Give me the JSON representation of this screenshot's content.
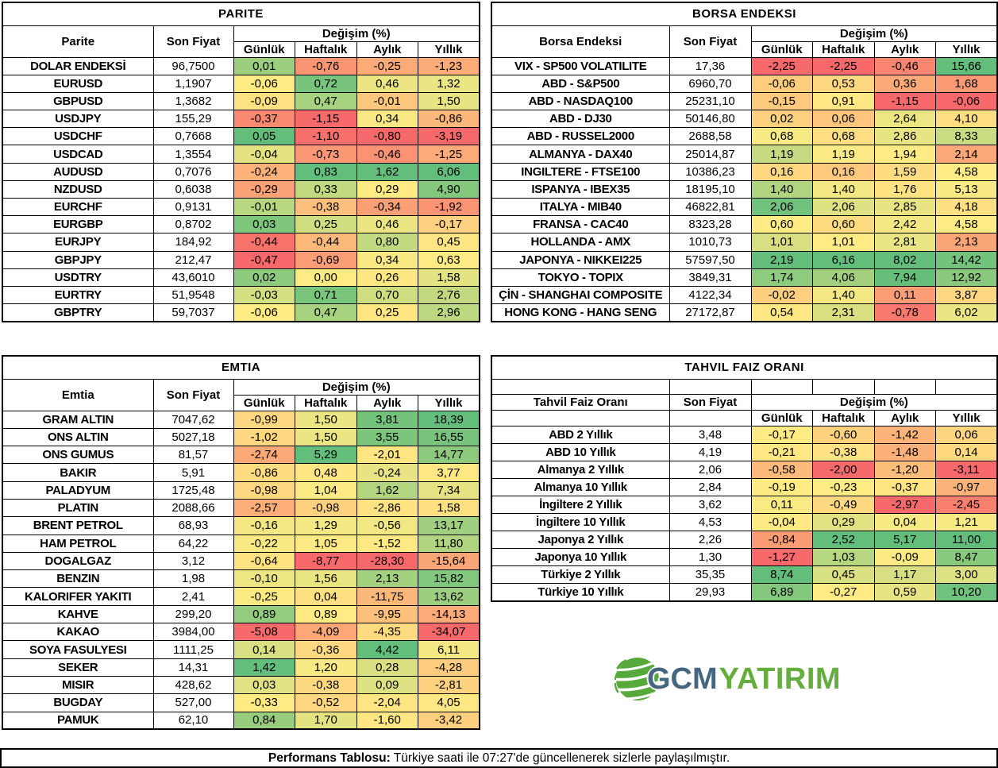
{
  "headers": {
    "price": "Son Fiyat",
    "change": "Değişim (%)",
    "periods": [
      "Günlük",
      "Haftalık",
      "Aylık",
      "Yıllık"
    ]
  },
  "colors": {
    "cell_scale": {
      "min": "#F8696B",
      "mid": "#FFEB84",
      "max": "#63BE7B"
    },
    "border": "#000000",
    "logo_primary": "#44677F",
    "logo_secondary": "#65AE3D",
    "logo_globe": "#57A93C"
  },
  "tables": [
    {
      "id": "parite",
      "title": "PARITE",
      "name_header": "Parite",
      "rows": [
        {
          "name": "DOLAR ENDEKSİ",
          "price": "96,7500",
          "changes": [
            "0,01",
            "-0,76",
            "-0,25",
            "-1,23"
          ]
        },
        {
          "name": "EURUSD",
          "price": "1,1907",
          "changes": [
            "-0,06",
            "0,72",
            "0,46",
            "1,32"
          ]
        },
        {
          "name": "GBPUSD",
          "price": "1,3682",
          "changes": [
            "-0,09",
            "0,47",
            "-0,01",
            "1,50"
          ]
        },
        {
          "name": "USDJPY",
          "price": "155,29",
          "changes": [
            "-0,37",
            "-1,15",
            "0,34",
            "-0,86"
          ]
        },
        {
          "name": "USDCHF",
          "price": "0,7668",
          "changes": [
            "0,05",
            "-1,10",
            "-0,80",
            "-3,19"
          ]
        },
        {
          "name": "USDCAD",
          "price": "1,3554",
          "changes": [
            "-0,04",
            "-0,73",
            "-0,46",
            "-1,25"
          ]
        },
        {
          "name": "AUDUSD",
          "price": "0,7076",
          "changes": [
            "-0,24",
            "0,83",
            "1,62",
            "6,06"
          ]
        },
        {
          "name": "NZDUSD",
          "price": "0,6038",
          "changes": [
            "-0,29",
            "0,33",
            "0,29",
            "4,90"
          ]
        },
        {
          "name": "EURCHF",
          "price": "0,9131",
          "changes": [
            "-0,01",
            "-0,38",
            "-0,34",
            "-1,92"
          ]
        },
        {
          "name": "EURGBP",
          "price": "0,8702",
          "changes": [
            "0,03",
            "0,25",
            "0,46",
            "-0,17"
          ]
        },
        {
          "name": "EURJPY",
          "price": "184,92",
          "changes": [
            "-0,44",
            "-0,44",
            "0,80",
            "0,45"
          ]
        },
        {
          "name": "GBPJPY",
          "price": "212,47",
          "changes": [
            "-0,47",
            "-0,69",
            "0,34",
            "0,63"
          ]
        },
        {
          "name": "USDTRY",
          "price": "43,6010",
          "changes": [
            "0,02",
            "0,00",
            "0,26",
            "1,58"
          ]
        },
        {
          "name": "EURTRY",
          "price": "51,9548",
          "changes": [
            "-0,03",
            "0,71",
            "0,70",
            "2,76"
          ]
        },
        {
          "name": "GBPTRY",
          "price": "59,7037",
          "changes": [
            "-0,06",
            "0,47",
            "0,25",
            "2,96"
          ]
        }
      ]
    },
    {
      "id": "borsa",
      "title": "BORSA ENDEKSI",
      "name_header": "Borsa Endeksi",
      "rows": [
        {
          "name": "VIX  - SP500 VOLATILITE",
          "price": "17,36",
          "changes": [
            "-2,25",
            "-2,25",
            "-0,46",
            "15,66"
          ]
        },
        {
          "name": "ABD - S&P500",
          "price": "6960,70",
          "changes": [
            "-0,06",
            "0,53",
            "0,36",
            "1,68"
          ]
        },
        {
          "name": "ABD - NASDAQ100",
          "price": "25231,10",
          "changes": [
            "-0,15",
            "0,91",
            "-1,15",
            "-0,06"
          ]
        },
        {
          "name": "ABD - DJ30",
          "price": "50146,80",
          "changes": [
            "0,02",
            "0,06",
            "2,64",
            "4,10"
          ]
        },
        {
          "name": "ABD - RUSSEL2000",
          "price": "2688,58",
          "changes": [
            "0,68",
            "0,68",
            "2,86",
            "8,33"
          ]
        },
        {
          "name": "ALMANYA - DAX40",
          "price": "25014,87",
          "changes": [
            "1,19",
            "1,19",
            "1,94",
            "2,14"
          ]
        },
        {
          "name": "INGILTERE - FTSE100",
          "price": "10386,23",
          "changes": [
            "0,16",
            "0,16",
            "1,59",
            "4,58"
          ]
        },
        {
          "name": "ISPANYA - IBEX35",
          "price": "18195,10",
          "changes": [
            "1,40",
            "1,40",
            "1,76",
            "5,13"
          ]
        },
        {
          "name": "ITALYA - MIB40",
          "price": "46822,81",
          "changes": [
            "2,06",
            "2,06",
            "2,85",
            "4,18"
          ]
        },
        {
          "name": "FRANSA - CAC40",
          "price": "8323,28",
          "changes": [
            "0,60",
            "0,60",
            "2,42",
            "4,58"
          ]
        },
        {
          "name": "HOLLANDA - AMX",
          "price": "1010,73",
          "changes": [
            "1,01",
            "1,01",
            "2,81",
            "2,13"
          ]
        },
        {
          "name": "JAPONYA - NIKKEI225",
          "price": "57597,50",
          "changes": [
            "2,19",
            "6,16",
            "8,02",
            "14,42"
          ]
        },
        {
          "name": "TOKYO - TOPIX",
          "price": "3849,31",
          "changes": [
            "1,74",
            "4,06",
            "7,94",
            "12,92"
          ]
        },
        {
          "name": "ÇİN - SHANGHAI COMPOSITE",
          "price": "4122,34",
          "changes": [
            "-0,02",
            "1,40",
            "0,11",
            "3,87"
          ]
        },
        {
          "name": "HONG KONG - HANG SENG",
          "price": "27172,87",
          "changes": [
            "0,54",
            "2,31",
            "-0,78",
            "6,02"
          ]
        }
      ]
    },
    {
      "id": "emtia",
      "title": "EMTIA",
      "name_header": "Emtia",
      "rows": [
        {
          "name": "GRAM ALTIN",
          "price": "7047,62",
          "changes": [
            "-0,99",
            "1,50",
            "3,81",
            "18,39"
          ]
        },
        {
          "name": "ONS ALTIN",
          "price": "5027,18",
          "changes": [
            "-1,02",
            "1,50",
            "3,55",
            "16,55"
          ]
        },
        {
          "name": "ONS GUMUS",
          "price": "81,57",
          "changes": [
            "-2,74",
            "5,29",
            "-2,01",
            "14,77"
          ]
        },
        {
          "name": "BAKIR",
          "price": "5,91",
          "changes": [
            "-0,86",
            "0,48",
            "-0,24",
            "3,77"
          ]
        },
        {
          "name": "PALADYUM",
          "price": "1725,48",
          "changes": [
            "-0,98",
            "1,04",
            "1,62",
            "7,34"
          ]
        },
        {
          "name": "PLATIN",
          "price": "2088,66",
          "changes": [
            "-2,57",
            "-0,98",
            "-2,86",
            "1,58"
          ]
        },
        {
          "name": "BRENT PETROL",
          "price": "68,93",
          "changes": [
            "-0,16",
            "1,29",
            "-0,56",
            "13,17"
          ]
        },
        {
          "name": "HAM PETROL",
          "price": "64,22",
          "changes": [
            "-0,22",
            "1,05",
            "-1,52",
            "11,80"
          ]
        },
        {
          "name": "DOGALGAZ",
          "price": "3,12",
          "changes": [
            "-0,64",
            "-8,77",
            "-28,30",
            "-15,64"
          ]
        },
        {
          "name": "BENZIN",
          "price": "1,98",
          "changes": [
            "-0,10",
            "1,56",
            "2,13",
            "15,82"
          ]
        },
        {
          "name": "KALORIFER YAKITI",
          "price": "2,41",
          "changes": [
            "-0,25",
            "0,04",
            "-11,75",
            "13,62"
          ]
        },
        {
          "name": "KAHVE",
          "price": "299,20",
          "changes": [
            "0,89",
            "0,89",
            "-9,95",
            "-14,13"
          ]
        },
        {
          "name": "KAKAO",
          "price": "3984,00",
          "changes": [
            "-5,08",
            "-4,09",
            "-4,35",
            "-34,07"
          ]
        },
        {
          "name": "SOYA FASULYESI",
          "price": "1111,25",
          "changes": [
            "0,14",
            "-0,36",
            "4,42",
            "6,11"
          ]
        },
        {
          "name": "SEKER",
          "price": "14,31",
          "changes": [
            "1,42",
            "1,20",
            "0,28",
            "-4,28"
          ]
        },
        {
          "name": "MISIR",
          "price": "428,62",
          "changes": [
            "0,03",
            "-0,38",
            "0,09",
            "-2,81"
          ]
        },
        {
          "name": "BUGDAY",
          "price": "527,00",
          "changes": [
            "-0,33",
            "-0,52",
            "-2,04",
            "4,05"
          ]
        },
        {
          "name": "PAMUK",
          "price": "62,10",
          "changes": [
            "0,84",
            "1,70",
            "-1,60",
            "-3,42"
          ]
        }
      ]
    },
    {
      "id": "tahvil",
      "title": "TAHVIL FAIZ ORANI",
      "name_header": "Tahvil Faiz Oranı",
      "rows": [
        {
          "name": "ABD 2 Yıllık",
          "price": "3,48",
          "changes": [
            "-0,17",
            "-0,60",
            "-1,42",
            "0,06"
          ]
        },
        {
          "name": "ABD 10 Yıllık",
          "price": "4,19",
          "changes": [
            "-0,21",
            "-0,38",
            "-1,48",
            "0,14"
          ]
        },
        {
          "name": "Almanya 2 Yıllık",
          "price": "2,06",
          "changes": [
            "-0,58",
            "-2,00",
            "-1,20",
            "-3,11"
          ]
        },
        {
          "name": "Almanya 10 Yıllık",
          "price": "2,84",
          "changes": [
            "-0,19",
            "-0,23",
            "-0,37",
            "-0,97"
          ]
        },
        {
          "name": "İngiltere 2 Yıllık",
          "price": "3,62",
          "changes": [
            "0,11",
            "-0,49",
            "-2,97",
            "-2,45"
          ]
        },
        {
          "name": "İngiltere 10 Yıllık",
          "price": "4,53",
          "changes": [
            "-0,04",
            "0,29",
            "0,04",
            "1,21"
          ]
        },
        {
          "name": "Japonya 2 Yıllık",
          "price": "2,26",
          "changes": [
            "-0,84",
            "2,52",
            "5,17",
            "11,00"
          ]
        },
        {
          "name": "Japonya 10 Yıllık",
          "price": "1,30",
          "changes": [
            "-1,27",
            "1,03",
            "-0,09",
            "8,47"
          ]
        },
        {
          "name": "Türkiye 2 Yıllık",
          "price": "35,35",
          "changes": [
            "8,74",
            "0,45",
            "1,17",
            "3,00"
          ]
        },
        {
          "name": "Türkiye 10 Yıllık",
          "price": "29,93",
          "changes": [
            "6,89",
            "-0,27",
            "0,59",
            "10,20"
          ]
        }
      ]
    }
  ],
  "logo": {
    "text_primary": "GCM",
    "text_secondary": "YATIRIM"
  },
  "footer": {
    "label": "Performans Tablosu:",
    "text": "Türkiye saati ile 07:27'de güncellenerek sizlerle paylaşılmıştır."
  }
}
